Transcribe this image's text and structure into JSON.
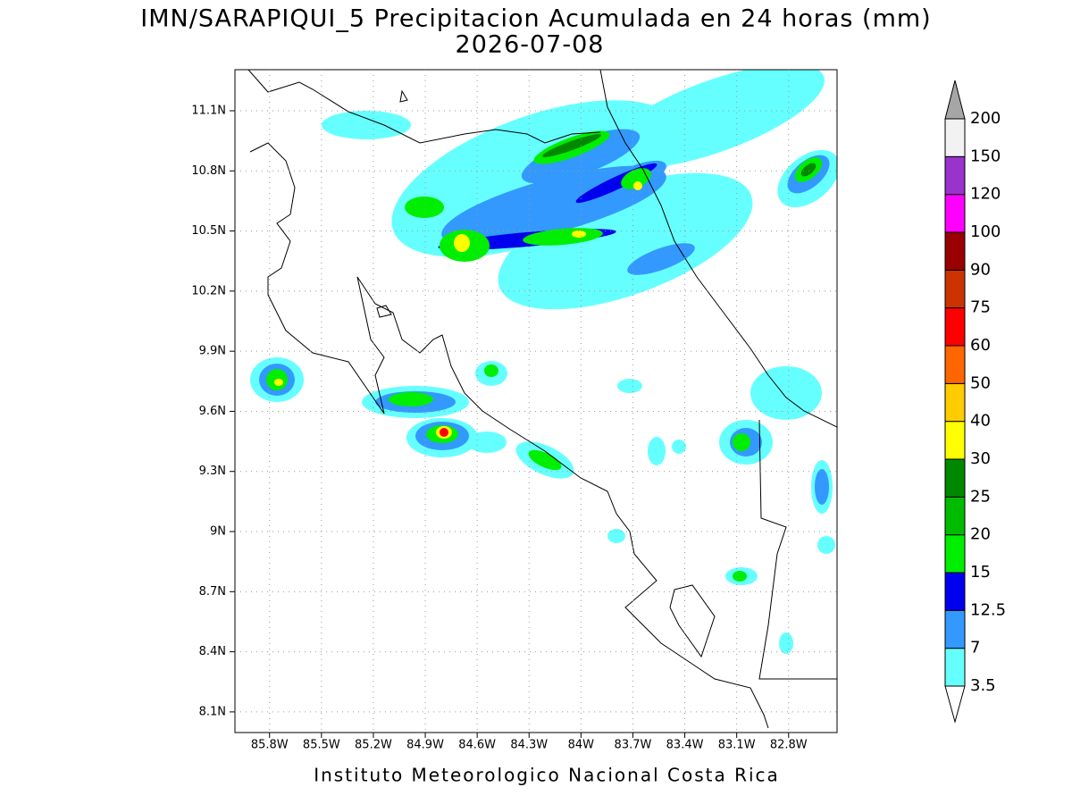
{
  "header": {
    "title": "IMN/SARAPIQUI_5 Precipitacion Acumulada en 24 horas (mm)",
    "date": "2026-07-08"
  },
  "map": {
    "lonlim": [
      -86.0,
      -82.52
    ],
    "latlim": [
      7.997,
      11.305
    ],
    "grid": true,
    "lon_ticks": [
      {
        "value": -85.8,
        "label": "85.8W"
      },
      {
        "value": -85.5,
        "label": "85.5W"
      },
      {
        "value": -85.2,
        "label": "85.2W"
      },
      {
        "value": -84.9,
        "label": "84.9W"
      },
      {
        "value": -84.6,
        "label": "84.6W"
      },
      {
        "value": -84.3,
        "label": "84.3W"
      },
      {
        "value": -84.0,
        "label": "84W"
      },
      {
        "value": -83.7,
        "label": "83.7W"
      },
      {
        "value": -83.4,
        "label": "83.4W"
      },
      {
        "value": -83.1,
        "label": "83.1W"
      },
      {
        "value": -82.8,
        "label": "82.8W"
      }
    ],
    "lat_ticks": [
      {
        "value": 8.1,
        "label": "8.1N"
      },
      {
        "value": 8.4,
        "label": "8.4N"
      },
      {
        "value": 8.7,
        "label": "8.7N"
      },
      {
        "value": 9.0,
        "label": "9N"
      },
      {
        "value": 9.3,
        "label": "9.3N"
      },
      {
        "value": 9.6,
        "label": "9.6N"
      },
      {
        "value": 9.9,
        "label": "9.9N"
      },
      {
        "value": 10.2,
        "label": "10.2N"
      },
      {
        "value": 10.5,
        "label": "10.5N"
      },
      {
        "value": 10.8,
        "label": "10.8N"
      },
      {
        "value": 11.1,
        "label": "11.1N"
      }
    ]
  },
  "colorbar": {
    "levels": [
      3.5,
      7,
      12.5,
      15,
      20,
      25,
      30,
      40,
      50,
      60,
      75,
      90,
      100,
      120,
      150,
      200
    ],
    "colors": [
      "#66ffff",
      "#3399ff",
      "#0000ee",
      "#00ee00",
      "#00bb00",
      "#008800",
      "#ffff00",
      "#ffcc00",
      "#ff6600",
      "#ff0000",
      "#cc3300",
      "#990000",
      "#ff00ff",
      "#9933cc",
      "#f2f2f2"
    ],
    "under_color": "#ffffff",
    "over_color": "#a6a6a6"
  },
  "footer": "Instituto Meteorologico Nacional Costa Rica"
}
